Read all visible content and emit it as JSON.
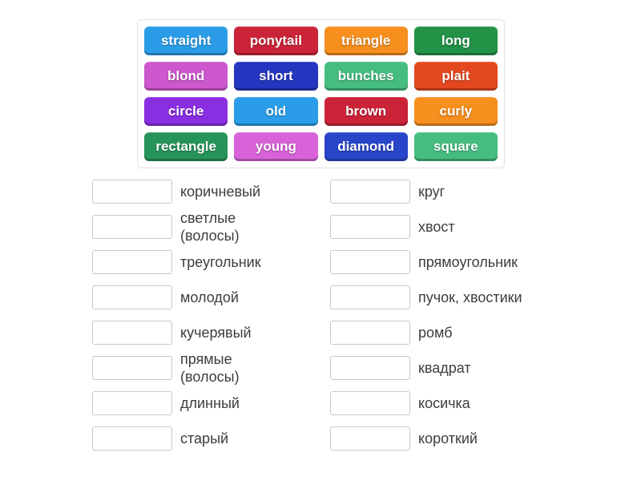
{
  "board": {
    "tiles": [
      {
        "label": "straight",
        "color": "#2b9de8"
      },
      {
        "label": "ponytail",
        "color": "#cb2438"
      },
      {
        "label": "triangle",
        "color": "#f78f1f"
      },
      {
        "label": "long",
        "color": "#239247"
      },
      {
        "label": "blond",
        "color": "#cd57cd"
      },
      {
        "label": "short",
        "color": "#2435bf"
      },
      {
        "label": "bunches",
        "color": "#45bd80"
      },
      {
        "label": "plait",
        "color": "#e4481f"
      },
      {
        "label": "circle",
        "color": "#8a2ee2"
      },
      {
        "label": "old",
        "color": "#2b9de8"
      },
      {
        "label": "brown",
        "color": "#cb2438"
      },
      {
        "label": "curly",
        "color": "#f78f1f"
      },
      {
        "label": "rectangle",
        "color": "#26945a"
      },
      {
        "label": "young",
        "color": "#d863d8"
      },
      {
        "label": "diamond",
        "color": "#2946ca"
      },
      {
        "label": "square",
        "color": "#45bd80"
      }
    ]
  },
  "matches": {
    "left": [
      "коричневый",
      "светлые\n(волосы)",
      "треугольник",
      "молодой",
      "кучерявый",
      "прямые\n(волосы)",
      "длинный",
      "старый"
    ],
    "right": [
      "круг",
      "хвост",
      "прямоугольник",
      "пучок, хвостики",
      "ромб",
      "квадрат",
      "косичка",
      "короткий"
    ]
  }
}
